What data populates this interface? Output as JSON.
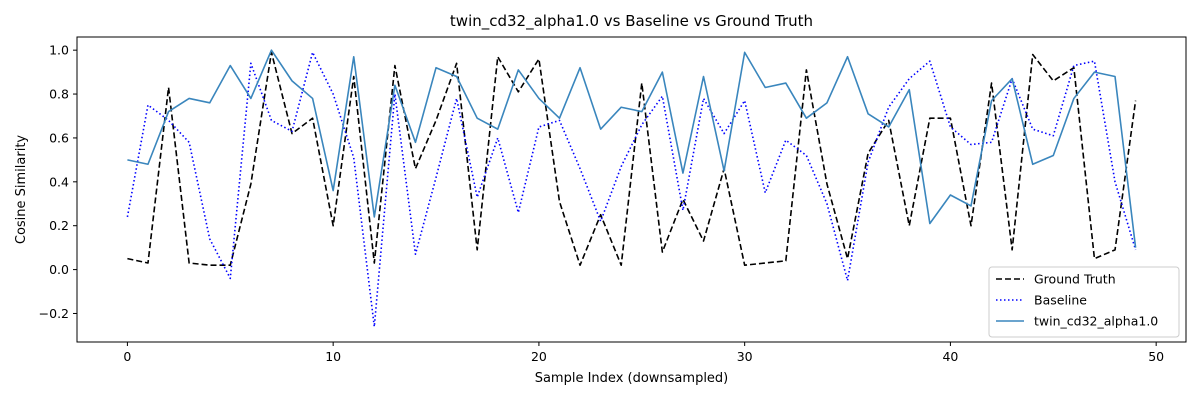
{
  "chart_data": {
    "type": "line",
    "title": "twin_cd32_alpha1.0 vs Baseline vs Ground Truth",
    "xlabel": "Sample Index (downsampled)",
    "ylabel": "Cosine Similarity",
    "xlim": [
      -2.45,
      51.45
    ],
    "ylim": [
      -0.33,
      1.06
    ],
    "xticks": [
      0,
      10,
      20,
      30,
      40,
      50
    ],
    "yticks": [
      -0.2,
      0.0,
      0.2,
      0.4,
      0.6,
      0.8,
      1.0
    ],
    "xtick_labels": [
      "0",
      "10",
      "20",
      "30",
      "40",
      "50"
    ],
    "ytick_labels": [
      "−0.2",
      "0.0",
      "0.2",
      "0.4",
      "0.6",
      "0.8",
      "1.0"
    ],
    "legend_position": "lower-right",
    "grid": false,
    "x": [
      0,
      1,
      2,
      3,
      4,
      5,
      6,
      7,
      8,
      9,
      10,
      11,
      12,
      13,
      14,
      15,
      16,
      17,
      18,
      19,
      20,
      21,
      22,
      23,
      24,
      25,
      26,
      27,
      28,
      29,
      30,
      31,
      32,
      33,
      34,
      35,
      36,
      37,
      38,
      39,
      40,
      41,
      42,
      43,
      44,
      45,
      46,
      47,
      48,
      49
    ],
    "series": [
      {
        "name": "Ground Truth",
        "color": "#000000",
        "style": "dashed",
        "values": [
          0.05,
          0.03,
          0.83,
          0.03,
          0.02,
          0.02,
          0.39,
          0.99,
          0.62,
          0.69,
          0.2,
          0.88,
          0.03,
          0.93,
          0.46,
          0.68,
          0.94,
          0.09,
          0.97,
          0.81,
          0.96,
          0.31,
          0.02,
          0.25,
          0.02,
          0.85,
          0.08,
          0.32,
          0.13,
          0.46,
          0.02,
          0.03,
          0.04,
          0.91,
          0.39,
          0.05,
          0.53,
          0.68,
          0.2,
          0.69,
          0.69,
          0.2,
          0.85,
          0.09,
          0.98,
          0.86,
          0.92,
          0.05,
          0.09,
          0.77
        ]
      },
      {
        "name": "Baseline",
        "color": "#0000ff",
        "style": "dotted",
        "values": [
          0.24,
          0.75,
          0.68,
          0.58,
          0.14,
          -0.04,
          0.94,
          0.68,
          0.63,
          0.99,
          0.8,
          0.51,
          -0.26,
          0.8,
          0.07,
          0.42,
          0.78,
          0.33,
          0.6,
          0.26,
          0.65,
          0.68,
          0.46,
          0.22,
          0.47,
          0.66,
          0.79,
          0.27,
          0.78,
          0.62,
          0.77,
          0.35,
          0.59,
          0.52,
          0.3,
          -0.05,
          0.49,
          0.74,
          0.87,
          0.95,
          0.65,
          0.57,
          0.58,
          0.87,
          0.64,
          0.61,
          0.93,
          0.95,
          0.4,
          0.09
        ]
      },
      {
        "name": "twin_cd32_alpha1.0",
        "color": "#3a86bd",
        "style": "solid",
        "values": [
          0.5,
          0.48,
          0.72,
          0.78,
          0.76,
          0.93,
          0.78,
          1.0,
          0.86,
          0.78,
          0.36,
          0.97,
          0.24,
          0.84,
          0.58,
          0.92,
          0.88,
          0.69,
          0.64,
          0.91,
          0.78,
          0.69,
          0.92,
          0.64,
          0.74,
          0.72,
          0.9,
          0.44,
          0.88,
          0.45,
          0.99,
          0.83,
          0.85,
          0.69,
          0.76,
          0.97,
          0.71,
          0.65,
          0.82,
          0.21,
          0.34,
          0.29,
          0.77,
          0.87,
          0.48,
          0.52,
          0.78,
          0.9,
          0.88,
          0.1
        ]
      }
    ]
  }
}
